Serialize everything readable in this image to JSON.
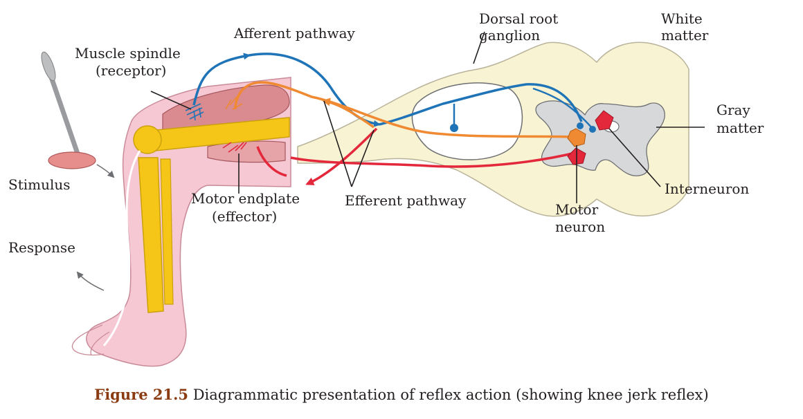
{
  "labels": {
    "afferent_pathway": "Afferent pathway",
    "dorsal_root_ganglion_1": "Dorsal root",
    "dorsal_root_ganglion_2": "ganglion",
    "white_matter_1": "White",
    "white_matter_2": "matter",
    "muscle_spindle_1": "Muscle spindle",
    "muscle_spindle_2": "(receptor)",
    "gray_matter_1": "Gray",
    "gray_matter_2": "matter",
    "stimulus": "Stimulus",
    "interneuron": "Interneuron",
    "motor_endplate_1": "Motor endplate",
    "motor_endplate_2": "(effector)",
    "efferent_pathway": "Efferent pathway",
    "motor_neuron_1": "Motor",
    "motor_neuron_2": "neuron",
    "response": "Response"
  },
  "caption": {
    "figure_number": "Figure 21.5",
    "text": " Diagrammatic presentation of reflex action (showing knee jerk reflex)"
  },
  "colors": {
    "afferent": "#1f74b8",
    "efferent_orange": "#f08a32",
    "efferent_red": "#e4283c",
    "spinal_cord": "#f8f3d2",
    "gray_matter": "#d7d8da",
    "bone": "#f5c518",
    "skin": "#f6c8d4",
    "muscle": "#d98b8f"
  }
}
